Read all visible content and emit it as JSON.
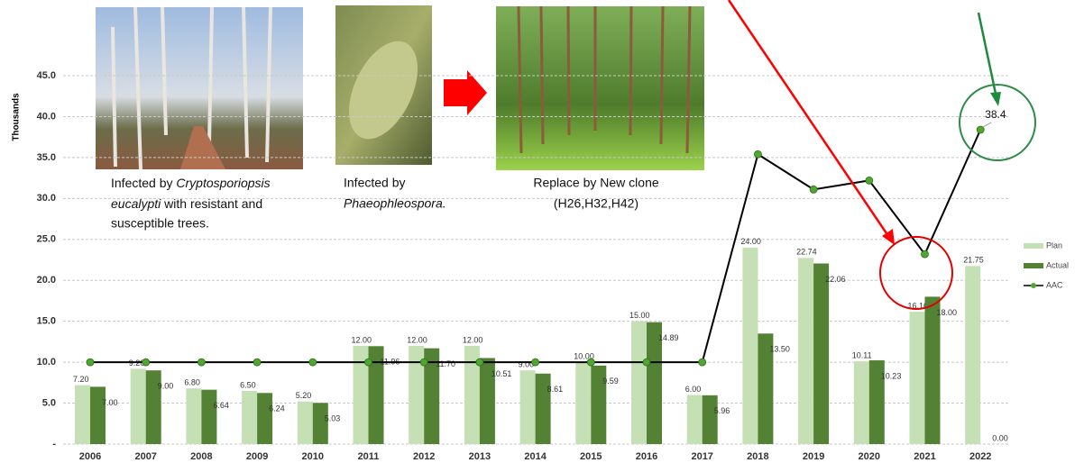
{
  "chart_data": {
    "type": "bar_line",
    "ylabel": "Thousands",
    "categories": [
      "2006",
      "2007",
      "2008",
      "2009",
      "2010",
      "2011",
      "2012",
      "2013",
      "2014",
      "2015",
      "2016",
      "2017",
      "2018",
      "2019",
      "2020",
      "2021",
      "2022"
    ],
    "series": [
      {
        "name": "Plan",
        "type": "bar",
        "color": "#c5e0b4",
        "values": [
          7.2,
          9.2,
          6.8,
          6.5,
          5.2,
          12,
          12,
          12,
          9,
          10,
          15,
          6,
          24,
          22.74,
          10.11,
          16.16,
          21.75
        ],
        "value_labels": [
          "7.20",
          "9.20",
          "6.80",
          "6.50",
          "5.20",
          "12.00",
          "12.00",
          "12.00",
          "9.00",
          "10.00",
          "15.00",
          "6.00",
          "24.00",
          "22.74",
          "10.11",
          "16.16",
          "21.75"
        ]
      },
      {
        "name": "Actual",
        "type": "bar",
        "color": "#548235",
        "values": [
          7,
          9,
          6.64,
          6.24,
          5.03,
          11.96,
          11.7,
          10.51,
          8.61,
          9.59,
          14.89,
          5.96,
          13.5,
          22.06,
          10.23,
          18,
          0
        ],
        "value_labels": [
          "7.00",
          "9.00",
          "6.64",
          "6.24",
          "5.03",
          "11.96",
          "11.70",
          "10.51",
          "8.61",
          "9.59",
          "14.89",
          "5.96",
          "13.50",
          "22.06",
          "10.23",
          "18.00",
          "0.00"
        ]
      },
      {
        "name": "AAC",
        "type": "line",
        "color": "#000000",
        "marker_color": "#4ea72e",
        "values": [
          10,
          10,
          10,
          10,
          10,
          10,
          10,
          10,
          10,
          10,
          10,
          10,
          35.4,
          31.1,
          32.2,
          23.2,
          38.4
        ],
        "value_labels": [
          null,
          null,
          null,
          null,
          null,
          null,
          null,
          null,
          null,
          null,
          null,
          null,
          null,
          null,
          null,
          null,
          "38.4"
        ]
      }
    ],
    "ylim": [
      0,
      45
    ],
    "yticks": [
      {
        "value": 0,
        "label": "-"
      },
      {
        "value": 5,
        "label": "5.0"
      },
      {
        "value": 10,
        "label": "10.0"
      },
      {
        "value": 15,
        "label": "15.0"
      },
      {
        "value": 20,
        "label": "20.0"
      },
      {
        "value": 25,
        "label": "25.0"
      },
      {
        "value": 30,
        "label": "30.0"
      },
      {
        "value": 35,
        "label": "35.0"
      },
      {
        "value": 40,
        "label": "40.0"
      },
      {
        "value": 45,
        "label": "45.0"
      }
    ],
    "grid": true,
    "legend": "right",
    "annotations": {
      "photo1": [
        "Infected by ",
        "Cryptosporiopsis",
        "eucalypti",
        " with resistant and",
        "susceptible trees."
      ],
      "photo2": [
        "Infected by",
        "Phaeophleospora."
      ],
      "photo3": [
        "Replace by New clone",
        "(H26,H32,H42)"
      ]
    }
  }
}
